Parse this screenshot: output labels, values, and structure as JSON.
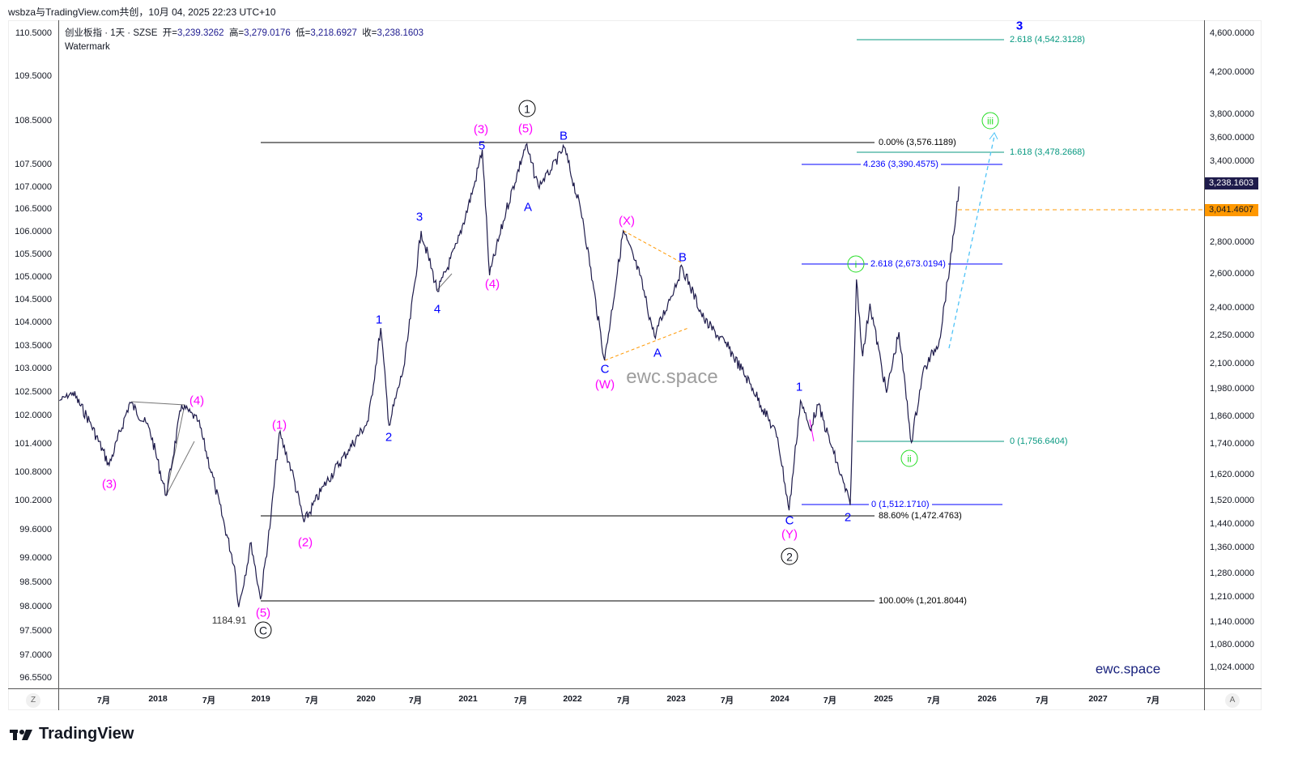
{
  "caption": "wsbza与TradingView.com共创，10月 04, 2025 22:23 UTC+10",
  "legend": {
    "symbol": "创业板指 · 1天 · SZSE",
    "open_label": "开=",
    "open": "3,239.3262",
    "high_label": "高=",
    "high": "3,279.0176",
    "low_label": "低=",
    "low": "3,218.6927",
    "close_label": "收=",
    "close": "3,238.1603",
    "watermark": "Watermark"
  },
  "left_axis": [
    "110.5000",
    "109.5000",
    "108.5000",
    "107.5000",
    "107.0000",
    "106.5000",
    "106.0000",
    "105.5000",
    "105.0000",
    "104.5000",
    "104.0000",
    "103.5000",
    "103.0000",
    "102.5000",
    "102.0000",
    "101.4000",
    "100.8000",
    "100.2000",
    "99.6000",
    "99.0000",
    "98.5000",
    "98.0000",
    "97.5000",
    "97.0000",
    "96.5500"
  ],
  "right_axis": [
    "4,600.0000",
    "4,200.0000",
    "3,800.0000",
    "3,600.0000",
    "3,400.0000",
    "2,800.0000",
    "2,600.0000",
    "2,400.0000",
    "2,250.0000",
    "2,100.0000",
    "1,980.0000",
    "1,860.0000",
    "1,740.0000",
    "1,620.0000",
    "1,520.0000",
    "1,440.0000",
    "1,360.0000",
    "1,280.0000",
    "1,210.0000",
    "1,140.0000",
    "1,080.0000",
    "1,024.0000"
  ],
  "price_tags": {
    "last": "3,238.1603",
    "last_color": "#1e1b4b",
    "level": "3,041.4607",
    "level_color": "#ff9800"
  },
  "time_axis": [
    "7月",
    "2018",
    "7月",
    "2019",
    "7月",
    "2020",
    "7月",
    "2021",
    "7月",
    "2022",
    "7月",
    "2023",
    "7月",
    "2024",
    "7月",
    "2025",
    "7月",
    "2026",
    "7月",
    "2027",
    "7月"
  ],
  "axis_buttons": {
    "left": "Z",
    "right": "A"
  },
  "fib": {
    "black": [
      "0.00% (3,576.1189)",
      "88.60% (1,472.4763)",
      "100.00% (1,201.8044)"
    ],
    "blue": [
      "4.236 (3,390.4575)",
      "2.618 (2,673.0194)",
      "0 (1,512.1710)"
    ],
    "teal": [
      "2.618 (4,542.3128)",
      "1.618 (3,478.2668)",
      "0 (1,756.6404)"
    ]
  },
  "annotations": {
    "low_value": "1184.91",
    "watermark_center": "ewc.space",
    "watermark_corner": "ewc.space"
  },
  "waves": {
    "black": [
      "1",
      "2",
      "C"
    ],
    "magenta": [
      "(3)",
      "(4)",
      "(5)",
      "(1)",
      "(2)",
      "(3)",
      "(5)",
      "(4)",
      "(X)",
      "(W)",
      "(Y)"
    ],
    "blue": [
      "1",
      "2",
      "3",
      "4",
      "5",
      "A",
      "B",
      "C",
      "A",
      "B",
      "C",
      "1",
      "2",
      "3"
    ],
    "green": [
      "i",
      "ii",
      "iii"
    ]
  },
  "brand": "TradingView",
  "chart_data": {
    "type": "line",
    "title": "创业板指 · 1天 · SZSE",
    "scale": "log",
    "ylim": [
      1000,
      4700
    ],
    "xlim": [
      2017.0,
      2027.9
    ],
    "line_color": "#1e1b4b",
    "points": [
      [
        2017.05,
        1941
      ],
      [
        2017.18,
        1978
      ],
      [
        2017.34,
        1848
      ],
      [
        2017.53,
        1663
      ],
      [
        2017.73,
        1933
      ],
      [
        2017.92,
        1813
      ],
      [
        2018.08,
        1547
      ],
      [
        2018.23,
        1921
      ],
      [
        2018.39,
        1848
      ],
      [
        2018.55,
        1582
      ],
      [
        2018.74,
        1305
      ],
      [
        2018.78,
        1184.91
      ],
      [
        2018.9,
        1382
      ],
      [
        2018.99,
        1207
      ],
      [
        2019.09,
        1465
      ],
      [
        2019.17,
        1795
      ],
      [
        2019.29,
        1645
      ],
      [
        2019.41,
        1451
      ],
      [
        2019.6,
        1582
      ],
      [
        2019.84,
        1726
      ],
      [
        2020.03,
        1848
      ],
      [
        2020.15,
        2309
      ],
      [
        2020.23,
        1830
      ],
      [
        2020.38,
        2117
      ],
      [
        2020.54,
        2912
      ],
      [
        2020.7,
        2519
      ],
      [
        2020.89,
        2829
      ],
      [
        2021.05,
        3241
      ],
      [
        2021.13,
        3536
      ],
      [
        2021.2,
        2619
      ],
      [
        2021.36,
        3057
      ],
      [
        2021.55,
        3576
      ],
      [
        2021.67,
        3241
      ],
      [
        2021.79,
        3367
      ],
      [
        2021.92,
        3556
      ],
      [
        2022.1,
        2999
      ],
      [
        2022.31,
        2137
      ],
      [
        2022.49,
        2912
      ],
      [
        2022.65,
        2619
      ],
      [
        2022.79,
        2265
      ],
      [
        2022.92,
        2447
      ],
      [
        2023.06,
        2670
      ],
      [
        2023.27,
        2354
      ],
      [
        2023.51,
        2199
      ],
      [
        2023.74,
        1998
      ],
      [
        2023.98,
        1777
      ],
      [
        2024.09,
        1493
      ],
      [
        2024.2,
        1941
      ],
      [
        2024.29,
        1813
      ],
      [
        2024.37,
        1921
      ],
      [
        2024.52,
        1711
      ],
      [
        2024.68,
        1512
      ],
      [
        2024.74,
        2593
      ],
      [
        2024.8,
        2158
      ],
      [
        2024.87,
        2447
      ],
      [
        2025.03,
        1978
      ],
      [
        2025.15,
        2286
      ],
      [
        2025.27,
        1756
      ],
      [
        2025.38,
        2075
      ],
      [
        2025.54,
        2243
      ],
      [
        2025.66,
        2776
      ],
      [
        2025.73,
        3238.16
      ]
    ]
  }
}
